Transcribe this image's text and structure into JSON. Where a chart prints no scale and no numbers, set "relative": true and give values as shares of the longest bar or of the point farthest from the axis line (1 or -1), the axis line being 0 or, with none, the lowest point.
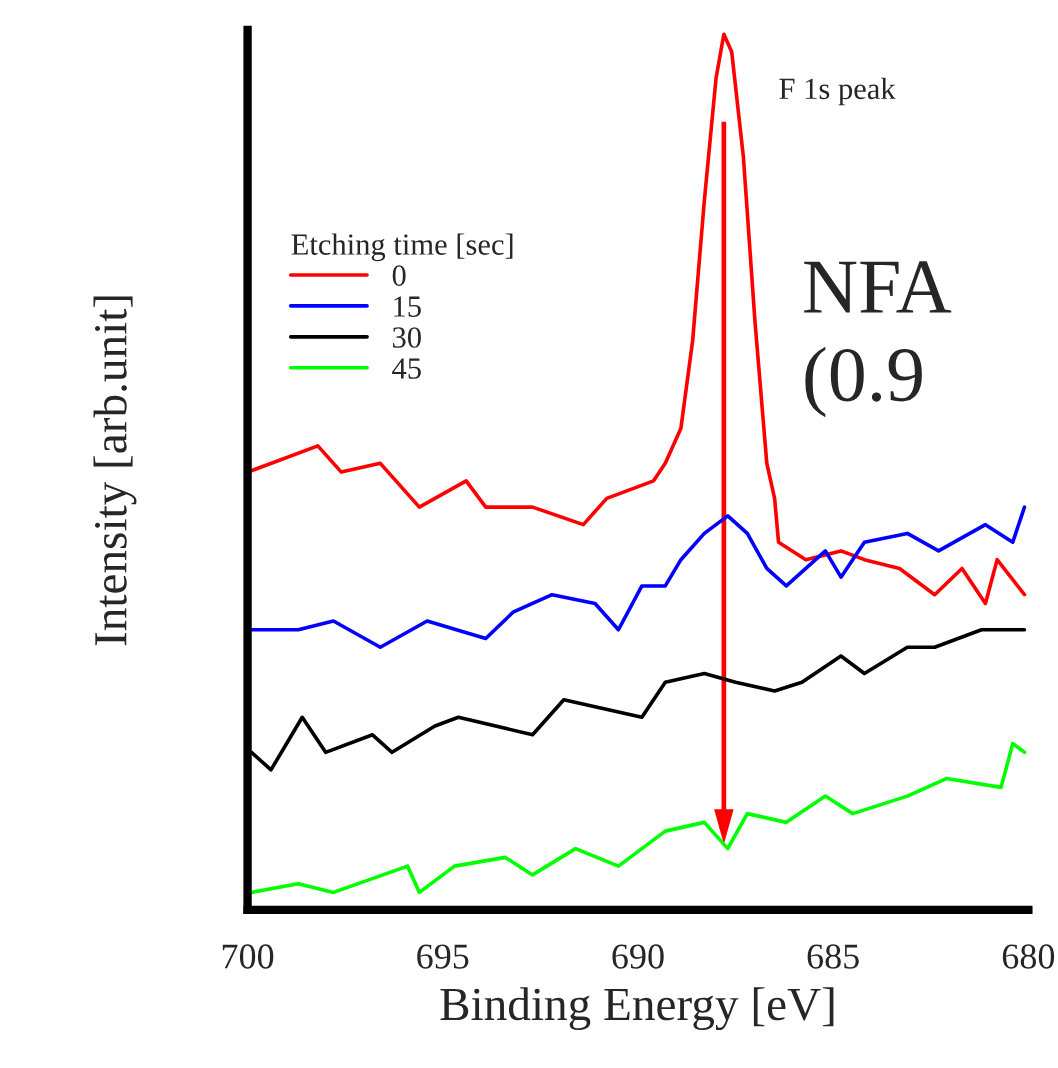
{
  "chart_data": {
    "type": "line",
    "relative": true,
    "xlabel": "Binding Energy [eV]",
    "ylabel": "Intensity [arb.unit]",
    "legend_title": "Etching time [sec]",
    "xlim": [
      700,
      680
    ],
    "xticks": [
      700,
      695,
      690,
      685,
      680
    ],
    "grid": false,
    "legend": "top left",
    "tick_labels": "x",
    "annotations": [
      "F 1s peak",
      "NFA",
      "(0.9"
    ],
    "series": [
      {
        "name": "0",
        "color": "#ff0000",
        "x": [
          700,
          698.2,
          697.6,
          696.6,
          695.6,
          694.4,
          693.9,
          692.7,
          691.4,
          690.8,
          689.6,
          689.3,
          688.9,
          688.6,
          688.3,
          688.0,
          687.8,
          687.6,
          687.3,
          687.0,
          686.7,
          686.5,
          686.4,
          685.7,
          684.8,
          684.2,
          683.3,
          682.4,
          681.7,
          681.1,
          680.8,
          680.1
        ],
        "values": [
          0.5,
          0.53,
          0.5,
          0.51,
          0.46,
          0.49,
          0.46,
          0.46,
          0.44,
          0.47,
          0.49,
          0.51,
          0.55,
          0.65,
          0.81,
          0.95,
          1.0,
          0.98,
          0.86,
          0.67,
          0.51,
          0.47,
          0.42,
          0.4,
          0.41,
          0.4,
          0.39,
          0.36,
          0.39,
          0.35,
          0.4,
          0.36
        ]
      },
      {
        "name": "15",
        "color": "#0000ff",
        "x": [
          699.9,
          698.7,
          697.8,
          696.6,
          695.4,
          693.9,
          693.2,
          692.2,
          691.1,
          690.5,
          689.9,
          689.3,
          688.9,
          688.3,
          687.7,
          687.2,
          686.7,
          686.2,
          685.2,
          684.8,
          684.2,
          683.1,
          682.3,
          681.1,
          680.4,
          680.1
        ],
        "values": [
          0.32,
          0.32,
          0.33,
          0.3,
          0.33,
          0.31,
          0.34,
          0.36,
          0.35,
          0.32,
          0.37,
          0.37,
          0.4,
          0.43,
          0.45,
          0.43,
          0.39,
          0.37,
          0.41,
          0.38,
          0.42,
          0.43,
          0.41,
          0.44,
          0.42,
          0.46
        ]
      },
      {
        "name": "30",
        "color": "#000000",
        "x": [
          699.9,
          699.4,
          698.6,
          698.0,
          696.8,
          696.3,
          695.2,
          694.6,
          692.7,
          691.9,
          689.9,
          689.3,
          688.3,
          687.5,
          686.5,
          685.8,
          684.8,
          684.2,
          683.1,
          682.4,
          681.2,
          680.1
        ],
        "values": [
          0.18,
          0.16,
          0.22,
          0.18,
          0.2,
          0.18,
          0.21,
          0.22,
          0.2,
          0.24,
          0.22,
          0.26,
          0.27,
          0.26,
          0.25,
          0.26,
          0.29,
          0.27,
          0.3,
          0.3,
          0.32,
          0.32
        ]
      },
      {
        "name": "45",
        "color": "#00ff00",
        "x": [
          699.9,
          698.7,
          697.8,
          695.9,
          695.6,
          694.7,
          693.4,
          692.7,
          691.6,
          690.5,
          689.3,
          688.3,
          687.7,
          687.2,
          686.2,
          685.2,
          684.5,
          683.1,
          682.1,
          680.7,
          680.4,
          680.1
        ],
        "values": [
          0.02,
          0.03,
          0.02,
          0.05,
          0.02,
          0.05,
          0.06,
          0.04,
          0.07,
          0.05,
          0.09,
          0.1,
          0.07,
          0.11,
          0.1,
          0.13,
          0.11,
          0.13,
          0.15,
          0.14,
          0.19,
          0.18
        ]
      }
    ]
  }
}
